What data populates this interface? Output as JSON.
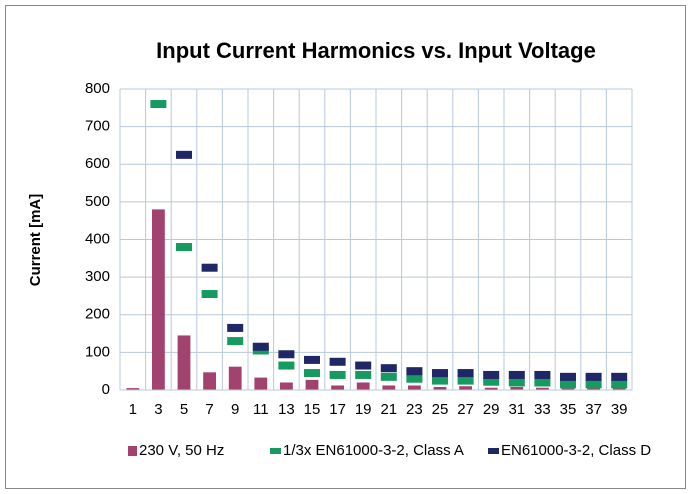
{
  "chart_data": {
    "type": "bar",
    "title": "Input Current Harmonics vs. Input Voltage",
    "y_label": "Current [mA]",
    "categories": [
      "1",
      "3",
      "5",
      "7",
      "9",
      "11",
      "13",
      "15",
      "17",
      "19",
      "21",
      "23",
      "25",
      "27",
      "29",
      "31",
      "33",
      "35",
      "37",
      "39"
    ],
    "series": [
      {
        "name": "230 V, 50 Hz",
        "color": "#a2426f",
        "style": "bar",
        "values": [
          5,
          480,
          145,
          47,
          62,
          33,
          20,
          27,
          12,
          20,
          12,
          12,
          8,
          10,
          6,
          8,
          6,
          5,
          5,
          5
        ]
      },
      {
        "name": "1/3x EN61000-3-2, Class A",
        "color": "#169a60",
        "style": "dash",
        "values": [
          null,
          760,
          380,
          255,
          130,
          105,
          65,
          45,
          40,
          40,
          35,
          30,
          25,
          25,
          22,
          20,
          20,
          15,
          15,
          15
        ]
      },
      {
        "name": "EN61000-3-2, Class D",
        "color": "#1f2767",
        "style": "dash",
        "values": [
          null,
          null,
          625,
          325,
          165,
          115,
          95,
          80,
          75,
          65,
          58,
          50,
          45,
          45,
          40,
          40,
          40,
          35,
          35,
          35
        ]
      }
    ],
    "ylim": [
      0,
      800
    ],
    "yticks": [
      0,
      100,
      200,
      300,
      400,
      500,
      600,
      700,
      800
    ],
    "grid": true
  }
}
